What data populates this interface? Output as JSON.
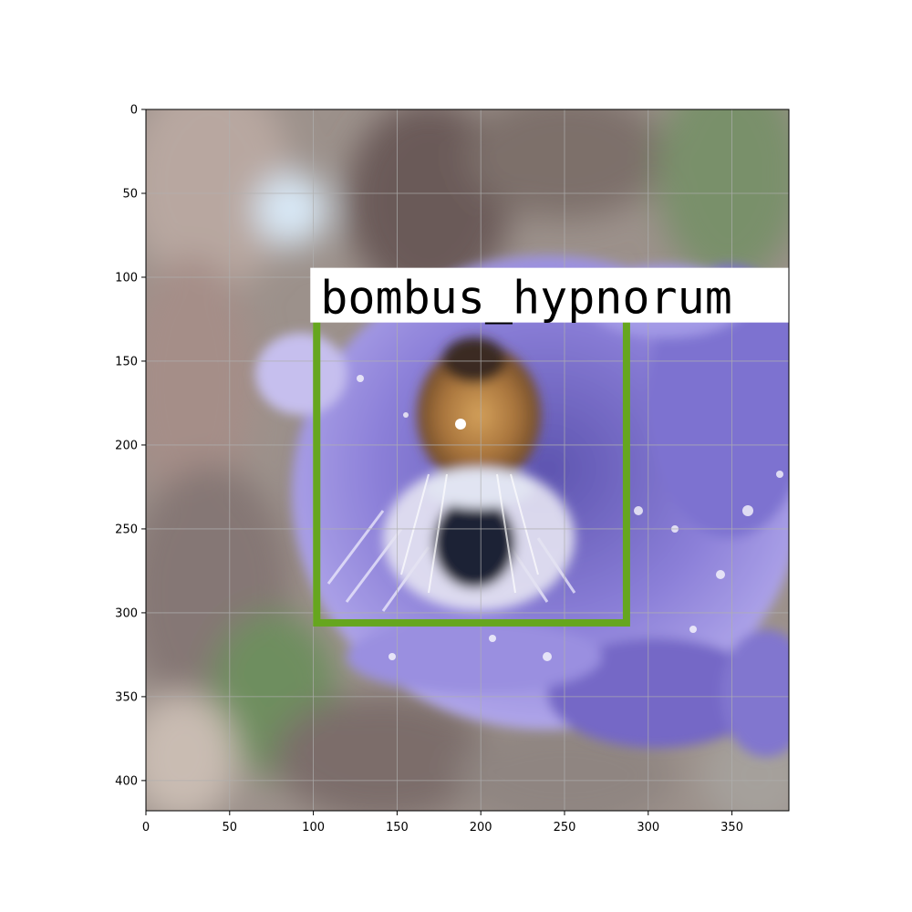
{
  "plot": {
    "xlim": [
      0,
      384
    ],
    "ylim": [
      418,
      0
    ],
    "grid": true,
    "x_ticks": [
      0,
      50,
      100,
      150,
      200,
      250,
      300,
      350
    ],
    "y_ticks": [
      0,
      50,
      100,
      150,
      200,
      250,
      300,
      350,
      400
    ]
  },
  "detection": {
    "label": "bombus_hypnorum",
    "box_color": "#66a61e",
    "label_background": "#ffffff",
    "label_color": "#000000",
    "box": {
      "x0": 102,
      "y0": 127,
      "x1": 287,
      "y1": 306
    }
  },
  "image_scene": {
    "subject": "bumblebee on a purple scabious flower",
    "flower_color": "#8f82d6",
    "background_tones": [
      "#9a8f88",
      "#7b6d6a",
      "#b7b1a6",
      "#6f8a63"
    ]
  }
}
